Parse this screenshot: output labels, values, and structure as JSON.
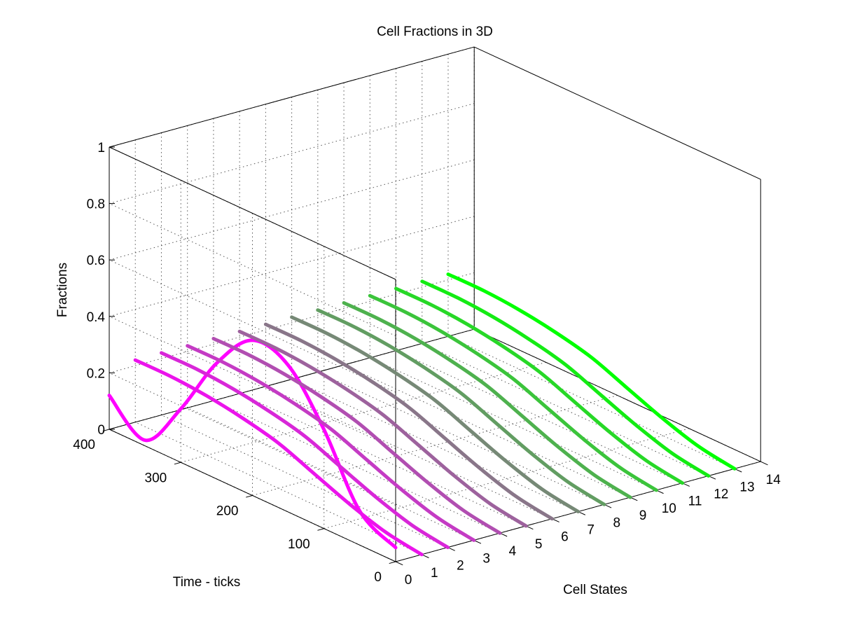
{
  "title": "Cell Fractions in 3D",
  "chart_data": {
    "type": "line3d",
    "title": "Cell Fractions in 3D",
    "xlabel": "Cell States",
    "ylabel": "Time - ticks",
    "zlabel": "Fractions",
    "xlim": [
      0,
      14
    ],
    "ylim": [
      0,
      400
    ],
    "zlim": [
      0,
      1
    ],
    "xticks": [
      "0",
      "1",
      "2",
      "3",
      "4",
      "5",
      "6",
      "7",
      "8",
      "9",
      "10",
      "11",
      "12",
      "13",
      "14"
    ],
    "yticks": [
      "0",
      "100",
      "200",
      "300",
      "400"
    ],
    "zticks": [
      "0",
      "0.2",
      "0.4",
      "0.6",
      "0.8",
      "1"
    ],
    "grid": true,
    "colors": {
      "state0": "#ff00ff",
      "state13": "#00ff00"
    },
    "time": [
      0,
      50,
      100,
      150,
      200,
      250,
      300,
      350,
      400
    ],
    "series": [
      {
        "state": 0,
        "values": [
          0.05,
          0.12,
          0.35,
          0.52,
          0.55,
          0.41,
          0.19,
          0.02,
          0.12
        ]
      },
      {
        "state": 1,
        "values": [
          0.0,
          0.02,
          0.06,
          0.11,
          0.16,
          0.19,
          0.21,
          0.22,
          0.22
        ]
      },
      {
        "state": 2,
        "values": [
          0.0,
          0.02,
          0.06,
          0.11,
          0.16,
          0.19,
          0.21,
          0.22,
          0.22
        ]
      },
      {
        "state": 3,
        "values": [
          0.0,
          0.02,
          0.06,
          0.11,
          0.16,
          0.19,
          0.21,
          0.22,
          0.22
        ]
      },
      {
        "state": 4,
        "values": [
          0.0,
          0.02,
          0.06,
          0.11,
          0.16,
          0.19,
          0.21,
          0.22,
          0.22
        ]
      },
      {
        "state": 5,
        "values": [
          0.0,
          0.02,
          0.06,
          0.11,
          0.16,
          0.19,
          0.21,
          0.22,
          0.22
        ]
      },
      {
        "state": 6,
        "values": [
          0.0,
          0.02,
          0.06,
          0.11,
          0.16,
          0.19,
          0.21,
          0.22,
          0.22
        ]
      },
      {
        "state": 7,
        "values": [
          0.0,
          0.02,
          0.06,
          0.11,
          0.16,
          0.19,
          0.21,
          0.22,
          0.22
        ]
      },
      {
        "state": 8,
        "values": [
          0.0,
          0.02,
          0.06,
          0.11,
          0.16,
          0.19,
          0.21,
          0.22,
          0.22
        ]
      },
      {
        "state": 9,
        "values": [
          0.0,
          0.02,
          0.06,
          0.11,
          0.16,
          0.19,
          0.21,
          0.22,
          0.22
        ]
      },
      {
        "state": 10,
        "values": [
          0.0,
          0.02,
          0.06,
          0.11,
          0.16,
          0.19,
          0.21,
          0.22,
          0.22
        ]
      },
      {
        "state": 11,
        "values": [
          0.0,
          0.02,
          0.06,
          0.11,
          0.16,
          0.19,
          0.21,
          0.22,
          0.22
        ]
      },
      {
        "state": 12,
        "values": [
          0.0,
          0.02,
          0.06,
          0.11,
          0.16,
          0.19,
          0.21,
          0.22,
          0.22
        ]
      },
      {
        "state": 13,
        "values": [
          0.0,
          0.02,
          0.06,
          0.11,
          0.16,
          0.19,
          0.21,
          0.22,
          0.22
        ]
      }
    ]
  }
}
